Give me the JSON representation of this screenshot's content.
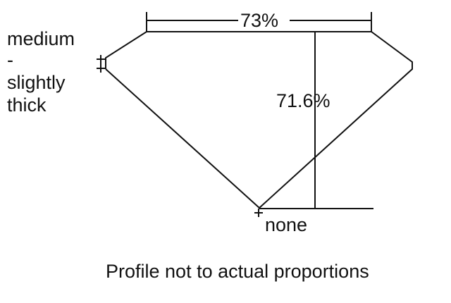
{
  "girdle_label": {
    "line1": "medium",
    "line2": "-",
    "line3": "slightly",
    "line4": "thick"
  },
  "table_label": "73%",
  "depth_label": "71.6%",
  "culet_label": "none",
  "caption": "Profile not to actual proportions",
  "colors": {
    "line": "#111111",
    "background": "#ffffff"
  }
}
